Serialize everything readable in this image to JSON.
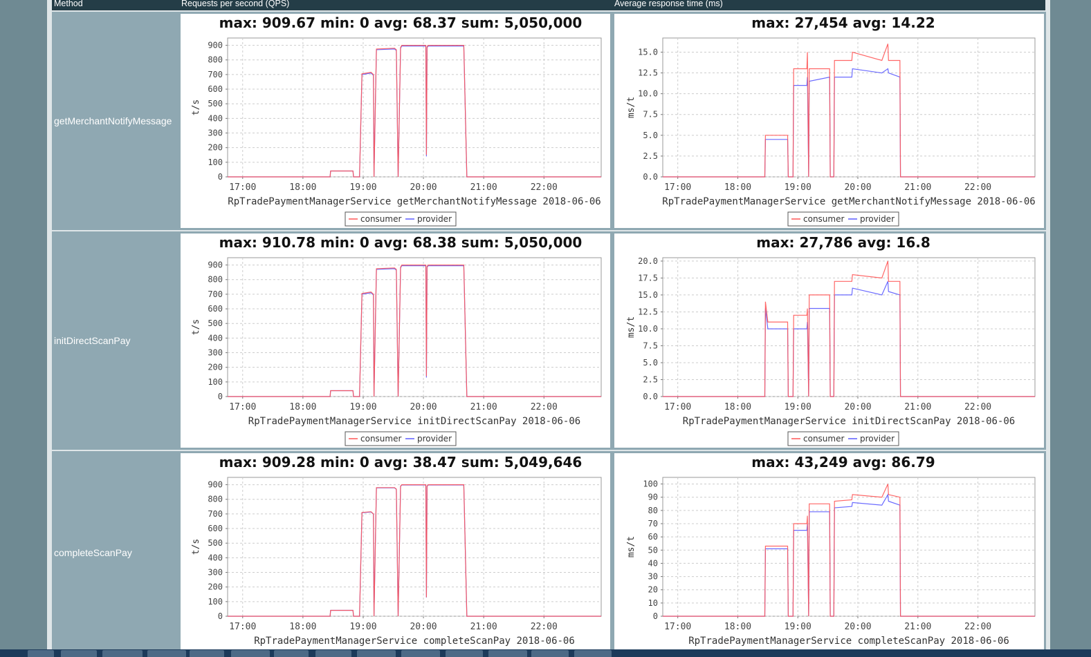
{
  "table": {
    "headers": [
      "Method",
      "Requests per second (QPS)",
      "Average response time (ms)"
    ],
    "rows": [
      {
        "method": "getMerchantNotifyMessage"
      },
      {
        "method": "initDirectScanPay"
      },
      {
        "method": "completeScanPay"
      }
    ]
  },
  "colors": {
    "consumer": "#ff5555",
    "provider": "#5a5aff",
    "header_bg": "#243d47",
    "cell_bg": "#8fa8b2"
  },
  "chart_data": [
    {
      "type": "line",
      "title": "max: 909.67 min: 0 avg: 68.37 sum: 5,050,000",
      "xlabel": "RpTradePaymentManagerService getMerchantNotifyMessage 2018-06-06",
      "ylabel": "t/s",
      "xlim": [
        16.75,
        22.95
      ],
      "ylim": [
        0,
        950
      ],
      "xticks": [
        "17:00",
        "18:00",
        "19:00",
        "20:00",
        "21:00",
        "22:00"
      ],
      "yticks": [
        0,
        100,
        200,
        300,
        400,
        500,
        600,
        700,
        800,
        900
      ],
      "legend": "bottom-center",
      "series": [
        {
          "name": "consumer",
          "x": [
            16.75,
            18.45,
            18.46,
            18.83,
            18.84,
            18.94,
            18.98,
            19.13,
            19.17,
            19.18,
            19.22,
            19.52,
            19.55,
            19.58,
            19.62,
            19.64,
            20.04,
            20.05,
            20.06,
            20.08,
            20.67,
            20.72,
            22.95
          ],
          "y": [
            0,
            0,
            40,
            40,
            0,
            0,
            705,
            715,
            700,
            0,
            875,
            880,
            870,
            0,
            885,
            900,
            900,
            150,
            890,
            900,
            900,
            0,
            0
          ]
        },
        {
          "name": "provider",
          "x": [
            16.75,
            18.45,
            18.46,
            18.83,
            18.84,
            18.94,
            18.98,
            19.13,
            19.17,
            19.18,
            19.22,
            19.52,
            19.55,
            19.58,
            19.62,
            19.64,
            20.04,
            20.05,
            20.06,
            20.08,
            20.67,
            20.72,
            22.95
          ],
          "y": [
            0,
            0,
            40,
            40,
            0,
            0,
            700,
            710,
            695,
            0,
            870,
            875,
            865,
            0,
            880,
            895,
            895,
            140,
            885,
            895,
            895,
            0,
            0
          ]
        }
      ]
    },
    {
      "type": "line",
      "title": "max: 27,454 avg: 14.22",
      "xlabel": "RpTradePaymentManagerService getMerchantNotifyMessage 2018-06-06",
      "ylabel": "ms/t",
      "xlim": [
        16.75,
        22.95
      ],
      "ylim": [
        0,
        16.7
      ],
      "xticks": [
        "17:00",
        "18:00",
        "19:00",
        "20:00",
        "21:00",
        "22:00"
      ],
      "yticks": [
        "0.0",
        "2.5",
        "5.0",
        "7.5",
        "10.0",
        "12.5",
        "15.0"
      ],
      "legend": "bottom-center",
      "series": [
        {
          "name": "consumer",
          "x": [
            16.75,
            18.45,
            18.46,
            18.83,
            18.84,
            18.92,
            18.93,
            19.15,
            19.16,
            19.18,
            19.19,
            19.53,
            19.54,
            19.6,
            19.61,
            19.9,
            19.91,
            20.4,
            20.5,
            20.51,
            20.7,
            20.71,
            22.95
          ],
          "y": [
            0,
            0,
            5,
            5,
            0,
            0,
            13,
            13,
            15,
            0,
            13,
            13,
            0,
            0,
            14,
            14,
            15,
            14,
            16,
            14,
            14,
            0,
            0
          ]
        },
        {
          "name": "provider",
          "x": [
            16.75,
            18.45,
            18.46,
            18.83,
            18.84,
            18.92,
            18.93,
            19.15,
            19.16,
            19.18,
            19.19,
            19.53,
            19.54,
            19.6,
            19.61,
            19.9,
            19.91,
            20.4,
            20.5,
            20.51,
            20.7,
            20.71,
            22.95
          ],
          "y": [
            0,
            0,
            4.5,
            4.5,
            0,
            0,
            11,
            11,
            12,
            0,
            11.5,
            12,
            0,
            0,
            12,
            12,
            13,
            12.5,
            13,
            12.5,
            12,
            0,
            0
          ]
        }
      ]
    },
    {
      "type": "line",
      "title": "max: 910.78 min: 0 avg: 68.38 sum: 5,050,000",
      "xlabel": "RpTradePaymentManagerService initDirectScanPay 2018-06-06",
      "ylabel": "t/s",
      "xlim": [
        16.75,
        22.95
      ],
      "ylim": [
        0,
        950
      ],
      "xticks": [
        "17:00",
        "18:00",
        "19:00",
        "20:00",
        "21:00",
        "22:00"
      ],
      "yticks": [
        0,
        100,
        200,
        300,
        400,
        500,
        600,
        700,
        800,
        900
      ],
      "legend": "bottom-center",
      "series": [
        {
          "name": "consumer",
          "x": [
            16.75,
            18.45,
            18.46,
            18.83,
            18.84,
            18.94,
            18.98,
            19.13,
            19.17,
            19.18,
            19.22,
            19.52,
            19.55,
            19.58,
            19.62,
            19.64,
            20.04,
            20.05,
            20.06,
            20.08,
            20.67,
            20.72,
            22.95
          ],
          "y": [
            0,
            0,
            40,
            40,
            0,
            0,
            705,
            715,
            700,
            0,
            875,
            880,
            870,
            0,
            885,
            900,
            900,
            140,
            890,
            900,
            900,
            0,
            0
          ]
        },
        {
          "name": "provider",
          "x": [
            16.75,
            18.45,
            18.46,
            18.83,
            18.84,
            18.94,
            18.98,
            19.13,
            19.17,
            19.18,
            19.22,
            19.52,
            19.55,
            19.58,
            19.62,
            19.64,
            20.04,
            20.05,
            20.06,
            20.08,
            20.67,
            20.72,
            22.95
          ],
          "y": [
            0,
            0,
            40,
            40,
            0,
            0,
            700,
            710,
            695,
            0,
            870,
            875,
            865,
            0,
            880,
            895,
            895,
            130,
            885,
            895,
            895,
            0,
            0
          ]
        }
      ]
    },
    {
      "type": "line",
      "title": "max: 27,786 avg: 16.8",
      "xlabel": "RpTradePaymentManagerService initDirectScanPay 2018-06-06",
      "ylabel": "ms/t",
      "xlim": [
        16.75,
        22.95
      ],
      "ylim": [
        0,
        20.5
      ],
      "xticks": [
        "17:00",
        "18:00",
        "19:00",
        "20:00",
        "21:00",
        "22:00"
      ],
      "yticks": [
        "0.0",
        "2.5",
        "5.0",
        "7.5",
        "10.0",
        "12.5",
        "15.0",
        "17.5",
        "20.0"
      ],
      "legend": "bottom-center",
      "series": [
        {
          "name": "consumer",
          "x": [
            16.75,
            18.45,
            18.46,
            18.5,
            18.83,
            18.84,
            18.92,
            18.93,
            19.15,
            19.16,
            19.18,
            19.19,
            19.53,
            19.54,
            19.6,
            19.61,
            19.9,
            19.91,
            20.4,
            20.5,
            20.51,
            20.7,
            20.71,
            22.95
          ],
          "y": [
            0,
            0,
            14,
            11,
            11,
            0,
            0,
            12,
            12,
            13,
            0,
            15,
            15,
            0,
            0,
            17,
            17,
            18,
            17.5,
            20,
            17,
            17,
            0,
            0
          ]
        },
        {
          "name": "provider",
          "x": [
            16.75,
            18.45,
            18.46,
            18.5,
            18.83,
            18.84,
            18.92,
            18.93,
            19.15,
            19.16,
            19.18,
            19.19,
            19.53,
            19.54,
            19.6,
            19.61,
            19.9,
            19.91,
            20.4,
            20.5,
            20.51,
            20.7,
            20.71,
            22.95
          ],
          "y": [
            0,
            0,
            13,
            10,
            10,
            0,
            0,
            10,
            10,
            11,
            0,
            13,
            13,
            0,
            0,
            15,
            15,
            16,
            15,
            17,
            15.5,
            15,
            0,
            0
          ]
        }
      ]
    },
    {
      "type": "line",
      "title": "max: 909.28 min: 0 avg: 38.47 sum: 5,049,646",
      "xlabel": "RpTradePaymentManagerService completeScanPay 2018-06-06",
      "ylabel": "t/s",
      "xlim": [
        16.75,
        22.95
      ],
      "ylim": [
        0,
        950
      ],
      "xticks": [
        "17:00",
        "18:00",
        "19:00",
        "20:00",
        "21:00",
        "22:00"
      ],
      "yticks": [
        0,
        100,
        200,
        300,
        400,
        500,
        600,
        700,
        800,
        900
      ],
      "legend": "none",
      "series": [
        {
          "name": "consumer",
          "x": [
            16.75,
            18.45,
            18.46,
            18.83,
            18.84,
            18.94,
            18.98,
            19.13,
            19.17,
            19.18,
            19.22,
            19.52,
            19.55,
            19.58,
            19.62,
            19.64,
            20.04,
            20.05,
            20.06,
            20.08,
            20.67,
            20.72,
            22.95
          ],
          "y": [
            0,
            0,
            40,
            40,
            0,
            0,
            710,
            715,
            700,
            0,
            880,
            880,
            870,
            0,
            890,
            900,
            900,
            130,
            890,
            900,
            900,
            0,
            0
          ]
        },
        {
          "name": "provider",
          "x": [
            16.75,
            18.45,
            18.46,
            18.83,
            18.84,
            18.94,
            18.98,
            19.13,
            19.17,
            19.18,
            19.22,
            19.52,
            19.55,
            19.58,
            19.62,
            19.64,
            20.04,
            20.05,
            20.06,
            20.08,
            20.67,
            20.72,
            22.95
          ],
          "y": [
            0,
            0,
            40,
            40,
            0,
            0,
            708,
            713,
            698,
            0,
            878,
            878,
            868,
            0,
            888,
            898,
            898,
            128,
            888,
            898,
            898,
            0,
            0
          ]
        }
      ]
    },
    {
      "type": "line",
      "title": "max: 43,249 avg: 86.79",
      "xlabel": "RpTradePaymentManagerService completeScanPay 2018-06-06",
      "ylabel": "ms/t",
      "xlim": [
        16.75,
        22.95
      ],
      "ylim": [
        0,
        105
      ],
      "xticks": [
        "17:00",
        "18:00",
        "19:00",
        "20:00",
        "21:00",
        "22:00"
      ],
      "yticks": [
        0,
        10,
        20,
        30,
        40,
        50,
        60,
        70,
        80,
        90,
        100
      ],
      "legend": "none",
      "series": [
        {
          "name": "consumer",
          "x": [
            16.75,
            18.45,
            18.46,
            18.83,
            18.84,
            18.92,
            18.93,
            19.15,
            19.16,
            19.18,
            19.19,
            19.53,
            19.54,
            19.6,
            19.61,
            19.9,
            19.91,
            20.4,
            20.5,
            20.51,
            20.7,
            20.71,
            22.95
          ],
          "y": [
            0,
            0,
            53,
            53,
            0,
            0,
            70,
            70,
            76,
            0,
            85,
            85,
            0,
            0,
            87,
            88,
            92,
            90,
            100,
            92,
            90,
            0,
            0
          ]
        },
        {
          "name": "provider",
          "x": [
            16.75,
            18.45,
            18.46,
            18.83,
            18.84,
            18.92,
            18.93,
            19.15,
            19.16,
            19.18,
            19.19,
            19.53,
            19.54,
            19.6,
            19.61,
            19.9,
            19.91,
            20.4,
            20.5,
            20.51,
            20.7,
            20.71,
            22.95
          ],
          "y": [
            0,
            0,
            51,
            51,
            0,
            0,
            65,
            65,
            70,
            0,
            79,
            79,
            0,
            0,
            82,
            83,
            86,
            84,
            92,
            87,
            84,
            0,
            0
          ]
        }
      ]
    }
  ]
}
